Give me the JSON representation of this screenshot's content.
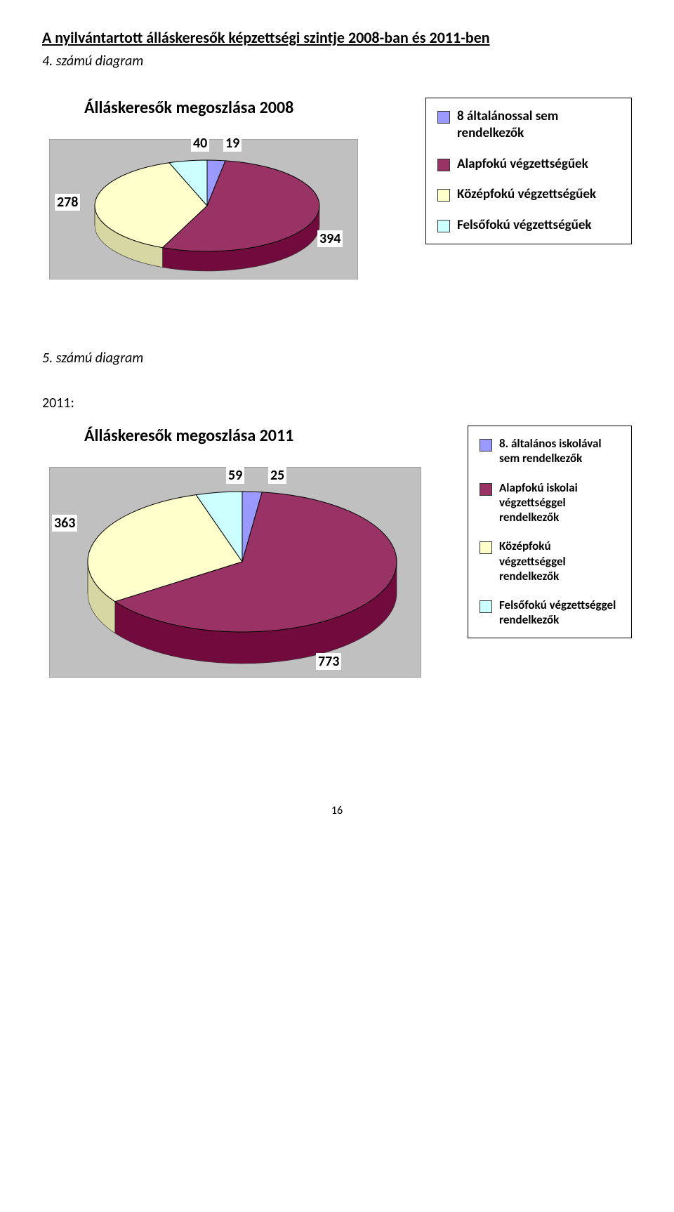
{
  "heading": "A nyilvántartott álláskeresők képzettségi szintje 2008-ban és 2011-ben",
  "caption4": "4. számú diagram",
  "caption5": "5. számú diagram",
  "year2011_label": "2011:",
  "page_number": "16",
  "chart2008": {
    "title": "Álláskeresők megoszlása 2008",
    "type": "pie",
    "categories": [
      "8 általánossal sem rendelkezők",
      "Alapfokú végzettségűek",
      "Középfokú végzettségűek",
      "Felsőfokú végzettségűek"
    ],
    "values": [
      19,
      394,
      278,
      40
    ],
    "labels": [
      "19",
      "394",
      "278",
      "40"
    ],
    "colors": [
      "#9999ff",
      "#993366",
      "#ffffcc",
      "#ccffff"
    ],
    "side_color": "#808000",
    "background_color": "#c0c0c0",
    "border_color": "#808080",
    "legend_items": [
      {
        "swatch": "#9999ff",
        "text": "8 általánossal sem rendelkezők"
      },
      {
        "swatch": "#993366",
        "text": "Alapfokú végzettségűek"
      },
      {
        "swatch": "#ffffcc",
        "text": "Középfokú végzettségűek"
      },
      {
        "swatch": "#ccffff",
        "text": "Felsőfokú végzettségűek"
      }
    ]
  },
  "chart2011": {
    "title": "Álláskeresők megoszlása 2011",
    "type": "pie",
    "categories": [
      "8. általános iskolával sem rendelkezők",
      "Alapfokú iskolai végzettséggel rendelkezők",
      "Középfokú végzettséggel rendelkezők",
      "Felsőfokú végzettséggel rendelkezők"
    ],
    "values": [
      25,
      773,
      363,
      59
    ],
    "labels": [
      "25",
      "773",
      "363",
      "59"
    ],
    "colors": [
      "#9999ff",
      "#993366",
      "#ffffcc",
      "#ccffff"
    ],
    "side_color": "#808000",
    "background_color": "#c0c0c0",
    "border_color": "#808080",
    "legend_items": [
      {
        "swatch": "#9999ff",
        "text": "8. általános iskolával sem rendelkezők"
      },
      {
        "swatch": "#993366",
        "text": "Alapfokú iskolai végzettséggel rendelkezők"
      },
      {
        "swatch": "#ffffcc",
        "text": "Középfokú végzettséggel rendelkezők"
      },
      {
        "swatch": "#ccffff",
        "text": "Felsőfokú végzettséggel rendelkezők"
      }
    ]
  }
}
